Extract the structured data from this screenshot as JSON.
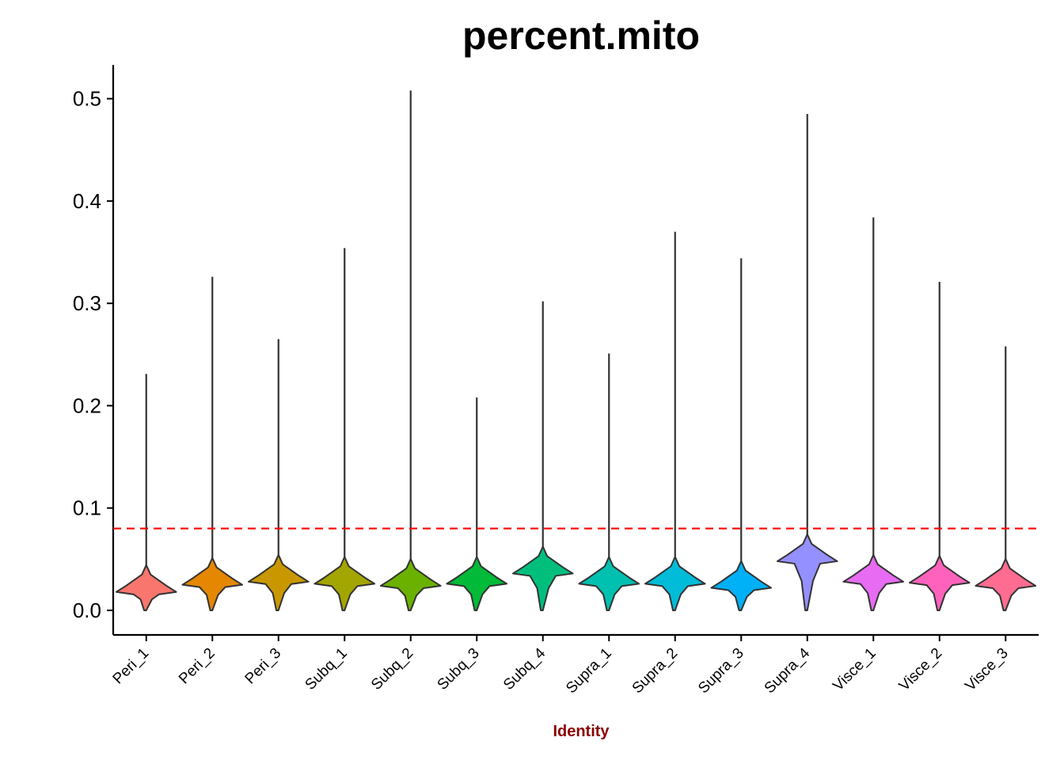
{
  "chart_data": {
    "type": "violin",
    "title": "percent.mito",
    "xlabel": "Identity",
    "ylabel": "",
    "ylim": [
      -0.024,
      0.533
    ],
    "yticks": [
      0.0,
      0.1,
      0.2,
      0.3,
      0.4,
      0.5
    ],
    "ytick_labels": [
      "0.0",
      "0.1",
      "0.2",
      "0.3",
      "0.4",
      "0.5"
    ],
    "reference_line": {
      "y": 0.08,
      "style": "dashed",
      "color": "#ff0000"
    },
    "xlabel_color": "#8b0000",
    "legend": "none",
    "grid": false,
    "categories": [
      "Peri_1",
      "Peri_2",
      "Peri_3",
      "Subq_1",
      "Subq_2",
      "Subq_3",
      "Subq_4",
      "Supra_1",
      "Supra_2",
      "Supra_3",
      "Supra_4",
      "Visce_1",
      "Visce_2",
      "Visce_3"
    ],
    "series": [
      {
        "category": "Peri_1",
        "color": "#F8766D",
        "min": 0.0,
        "median": 0.018,
        "max": 0.231
      },
      {
        "category": "Peri_2",
        "color": "#E58700",
        "min": 0.0,
        "median": 0.025,
        "max": 0.326
      },
      {
        "category": "Peri_3",
        "color": "#C99800",
        "min": 0.0,
        "median": 0.028,
        "max": 0.265
      },
      {
        "category": "Subq_1",
        "color": "#A3A500",
        "min": 0.0,
        "median": 0.026,
        "max": 0.354
      },
      {
        "category": "Subq_2",
        "color": "#6BB100",
        "min": 0.0,
        "median": 0.024,
        "max": 0.508
      },
      {
        "category": "Subq_3",
        "color": "#00BA38",
        "min": 0.0,
        "median": 0.026,
        "max": 0.208
      },
      {
        "category": "Subq_4",
        "color": "#00BF7D",
        "min": 0.0,
        "median": 0.036,
        "max": 0.302
      },
      {
        "category": "Supra_1",
        "color": "#00C0AF",
        "min": 0.0,
        "median": 0.026,
        "max": 0.251
      },
      {
        "category": "Supra_2",
        "color": "#00BCD8",
        "min": 0.0,
        "median": 0.026,
        "max": 0.37
      },
      {
        "category": "Supra_3",
        "color": "#00B0F6",
        "min": 0.0,
        "median": 0.022,
        "max": 0.344
      },
      {
        "category": "Supra_4",
        "color": "#9590FF",
        "min": 0.0,
        "median": 0.048,
        "max": 0.485
      },
      {
        "category": "Visce_1",
        "color": "#E76BF3",
        "min": 0.0,
        "median": 0.028,
        "max": 0.384
      },
      {
        "category": "Visce_2",
        "color": "#FF62BC",
        "min": 0.0,
        "median": 0.027,
        "max": 0.321
      },
      {
        "category": "Visce_3",
        "color": "#FF6C91",
        "min": 0.0,
        "median": 0.024,
        "max": 0.258
      }
    ]
  }
}
